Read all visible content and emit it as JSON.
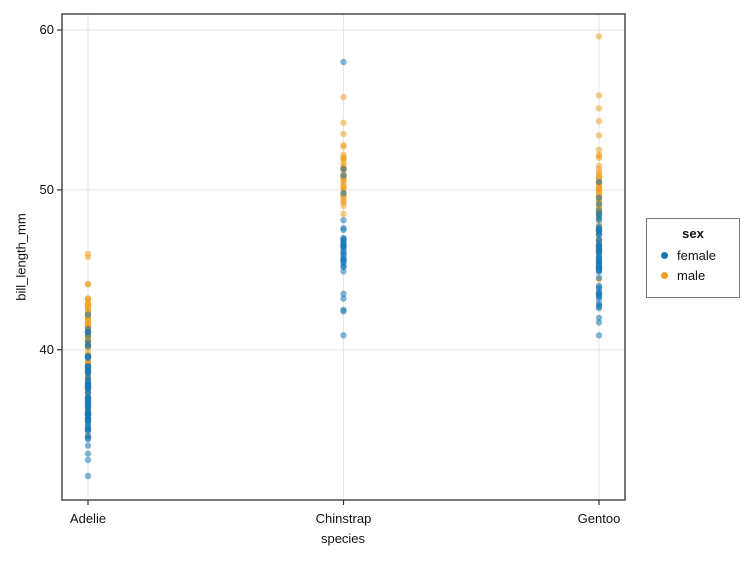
{
  "chart_data": {
    "type": "scatter",
    "subtype": "strip-plot",
    "title": "",
    "xlabel": "species",
    "ylabel": "bill_length_mm",
    "legend_title": "sex",
    "legend_position": "right",
    "categories": [
      "Adelie",
      "Chinstrap",
      "Gentoo"
    ],
    "y_ticks": [
      40,
      50,
      60
    ],
    "ylim": [
      30.6,
      61.0
    ],
    "grid": true,
    "point_alpha": 0.55,
    "point_radius": 3.2,
    "colors": {
      "female": "#1878B6",
      "male": "#EDA022"
    },
    "series": [
      {
        "name": "female",
        "color": "#1878B6",
        "groups": {
          "Adelie": [
            32.1,
            33.1,
            33.5,
            34.0,
            34.4,
            34.5,
            34.6,
            34.9,
            35.0,
            35.0,
            35.1,
            35.2,
            35.3,
            35.5,
            35.5,
            35.6,
            35.7,
            35.7,
            35.7,
            35.9,
            35.9,
            36.0,
            36.0,
            36.0,
            36.0,
            36.2,
            36.2,
            36.4,
            36.4,
            36.5,
            36.6,
            36.6,
            36.7,
            36.7,
            36.8,
            36.9,
            37.0,
            37.0,
            37.0,
            37.3,
            37.3,
            37.5,
            37.6,
            37.6,
            37.7,
            37.7,
            37.8,
            37.8,
            37.9,
            37.9,
            38.1,
            38.1,
            38.3,
            38.5,
            38.6,
            38.6,
            38.7,
            38.8,
            38.9,
            38.9,
            39.0,
            39.5,
            39.5,
            39.6,
            39.6,
            40.2,
            40.3,
            40.5,
            40.9,
            41.1,
            41.1,
            41.3,
            42.2
          ],
          "Chinstrap": [
            40.9,
            42.4,
            42.5,
            43.2,
            43.5,
            44.9,
            45.2,
            45.2,
            45.4,
            45.5,
            45.6,
            45.7,
            45.7,
            45.9,
            46.0,
            46.1,
            46.2,
            46.4,
            46.4,
            46.5,
            46.5,
            46.6,
            46.7,
            46.8,
            46.9,
            46.9,
            47.0,
            47.5,
            47.6,
            48.1,
            49.8,
            50.9,
            51.3,
            58.0
          ],
          "Gentoo": [
            40.9,
            41.7,
            42.0,
            42.6,
            42.7,
            42.8,
            42.9,
            43.2,
            43.3,
            43.4,
            43.5,
            43.5,
            43.6,
            43.8,
            43.9,
            44.0,
            44.5,
            44.9,
            44.9,
            45.0,
            45.1,
            45.1,
            45.2,
            45.2,
            45.3,
            45.4,
            45.5,
            45.5,
            45.6,
            45.7,
            45.8,
            45.8,
            46.0,
            46.1,
            46.2,
            46.2,
            46.3,
            46.4,
            46.5,
            46.5,
            46.6,
            46.8,
            46.9,
            47.2,
            47.2,
            47.4,
            47.5,
            47.5,
            47.6,
            47.7,
            48.1,
            48.2,
            48.4,
            48.5,
            48.7,
            49.1,
            49.5,
            50.5
          ]
        }
      },
      {
        "name": "male",
        "color": "#EDA022",
        "groups": {
          "Adelie": [
            34.6,
            35.5,
            36.3,
            37.2,
            37.5,
            37.7,
            37.8,
            38.2,
            38.3,
            38.6,
            38.8,
            38.8,
            39.0,
            39.0,
            39.1,
            39.2,
            39.2,
            39.3,
            39.6,
            39.6,
            39.6,
            39.7,
            39.8,
            40.1,
            40.2,
            40.2,
            40.3,
            40.3,
            40.4,
            40.5,
            40.6,
            40.6,
            40.6,
            40.7,
            40.7,
            40.8,
            40.8,
            40.9,
            41.0,
            41.0,
            41.1,
            41.1,
            41.1,
            41.2,
            41.3,
            41.4,
            41.4,
            41.5,
            41.5,
            41.6,
            41.6,
            41.8,
            41.8,
            42.0,
            42.0,
            42.1,
            42.2,
            42.3,
            42.3,
            42.5,
            42.5,
            42.7,
            42.7,
            42.8,
            42.9,
            42.9,
            43.1,
            43.2,
            43.2,
            44.1,
            44.1,
            45.8,
            46.0
          ],
          "Chinstrap": [
            48.5,
            49.0,
            49.2,
            49.3,
            49.5,
            49.6,
            49.7,
            49.8,
            50.0,
            50.1,
            50.2,
            50.3,
            50.5,
            50.6,
            50.7,
            50.8,
            50.8,
            50.9,
            51.0,
            51.3,
            51.3,
            51.3,
            51.4,
            51.5,
            51.7,
            51.9,
            52.0,
            52.0,
            52.2,
            52.7,
            52.8,
            53.5,
            54.2,
            55.8
          ],
          "Gentoo": [
            44.4,
            45.2,
            45.5,
            46.1,
            46.2,
            46.3,
            46.4,
            46.5,
            46.7,
            46.8,
            46.9,
            47.3,
            47.4,
            47.5,
            47.6,
            47.8,
            48.2,
            48.4,
            48.5,
            48.6,
            48.6,
            48.7,
            48.7,
            48.8,
            48.8,
            49.0,
            49.1,
            49.2,
            49.3,
            49.4,
            49.5,
            49.5,
            49.6,
            49.6,
            49.8,
            49.9,
            50.0,
            50.0,
            50.1,
            50.2,
            50.2,
            50.4,
            50.4,
            50.5,
            50.5,
            50.7,
            50.8,
            50.8,
            51.0,
            51.1,
            51.3,
            51.5,
            52.0,
            52.1,
            52.2,
            52.5,
            53.4,
            54.3,
            55.1,
            55.9,
            59.6
          ]
        }
      }
    ]
  }
}
